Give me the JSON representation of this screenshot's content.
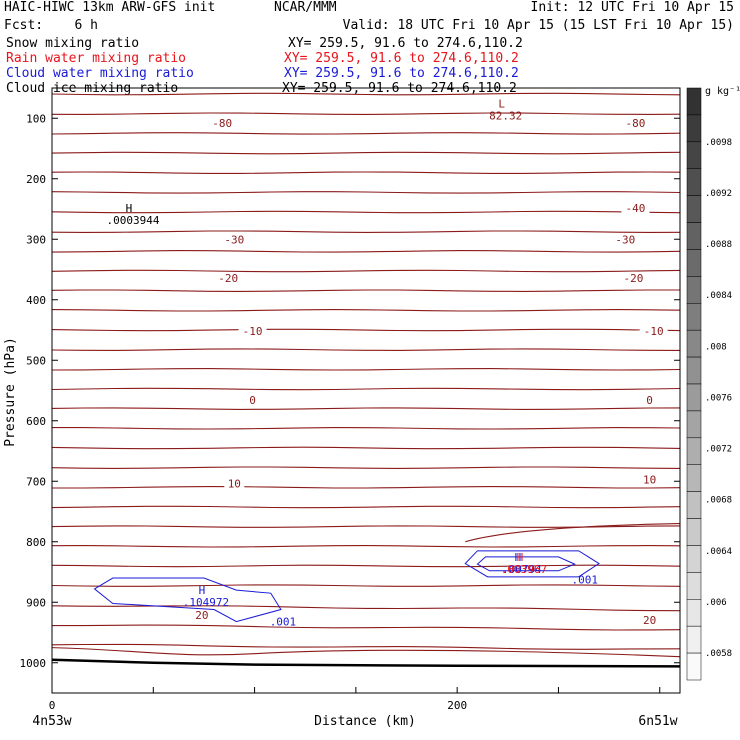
{
  "header": {
    "line1_left": "HAIC-HIWC 13km ARW-GFS init",
    "line1_center": "NCAR/MMM",
    "line1_right": "Init: 12 UTC Fri 10 Apr 15",
    "line2_left": "Fcst:    6 h",
    "line2_right": "Valid: 18 UTC Fri 10 Apr 15 (15 LST Fri 10 Apr 15)",
    "fields": [
      {
        "name": "Snow mixing ratio",
        "xy": "XY= 259.5, 91.6 to 274.6,110.2",
        "color": "#000000"
      },
      {
        "name": "Rain water mixing ratio",
        "xy": "XY= 259.5, 91.6 to 274.6,110.2",
        "color": "#e8141c"
      },
      {
        "name": "Cloud water mixing ratio",
        "xy": "XY= 259.5, 91.6 to 274.6,110.2",
        "color": "#1a1ad8"
      },
      {
        "name": "Cloud ice mixing ratio",
        "xy": "XY= 259.5, 91.6 to 274.6,110.2",
        "color": "#000000"
      }
    ]
  },
  "chart_data": {
    "type": "line",
    "xlabel": "Distance (km)",
    "ylabel": "Pressure (hPa)",
    "xlim": [
      0,
      310
    ],
    "ylim": [
      1050,
      50
    ],
    "x_ticks": [
      0,
      200
    ],
    "y_ticks": [
      100,
      200,
      300,
      400,
      500,
      600,
      700,
      800,
      900,
      1000
    ],
    "left_end_label": "4n53w",
    "right_end_label": "6n51w",
    "contour_color": "#8b1a1a",
    "isotherm_labels": [
      {
        "text": "-80",
        "x": 84,
        "p": 108
      },
      {
        "text": "-80",
        "x": 288,
        "p": 108
      },
      {
        "text": "-40",
        "x": 288,
        "p": 248
      },
      {
        "text": "-30",
        "x": 90,
        "p": 300
      },
      {
        "text": "-30",
        "x": 283,
        "p": 300
      },
      {
        "text": "-20",
        "x": 87,
        "p": 364
      },
      {
        "text": "-20",
        "x": 287,
        "p": 364
      },
      {
        "text": "-10",
        "x": 99,
        "p": 452
      },
      {
        "text": "-10",
        "x": 297,
        "p": 452
      },
      {
        "text": "0",
        "x": 99,
        "p": 566
      },
      {
        "text": "0",
        "x": 295,
        "p": 566
      },
      {
        "text": "10",
        "x": 90,
        "p": 704
      },
      {
        "text": "10",
        "x": 295,
        "p": 697
      },
      {
        "text": "20",
        "x": 74,
        "p": 921
      },
      {
        "text": "20",
        "x": 295,
        "p": 929
      }
    ],
    "extrema": [
      {
        "kind": "L",
        "value": "82.32",
        "x": 222,
        "p": 82,
        "color": "#8b1a1a"
      },
      {
        "kind": "H",
        "value": ".0003944",
        "x": 38,
        "p": 255,
        "color": "#000000"
      },
      {
        "kind": "H",
        "value": ".104972",
        "x": 74,
        "p": 886,
        "color": "#1a1ad8"
      },
      {
        "kind": "H",
        "value": ".00794",
        "x": 230,
        "p": 832,
        "color": "#1a1ad8"
      },
      {
        "kind": "H",
        "value": ".003967",
        "x": 231,
        "p": 832,
        "color": "#e8141c"
      }
    ],
    "cloud_contour_labels": [
      {
        "text": ".001",
        "x": 114,
        "p": 932
      },
      {
        "text": ".001",
        "x": 263,
        "p": 862
      }
    ],
    "colorbar": {
      "unit": "g kg⁻¹",
      "tick_labels": [
        ".0098",
        ".0092",
        ".0088",
        ".0084",
        ".008",
        ".0076",
        ".0072",
        ".0068",
        ".0064",
        ".006",
        ".0058"
      ]
    }
  }
}
